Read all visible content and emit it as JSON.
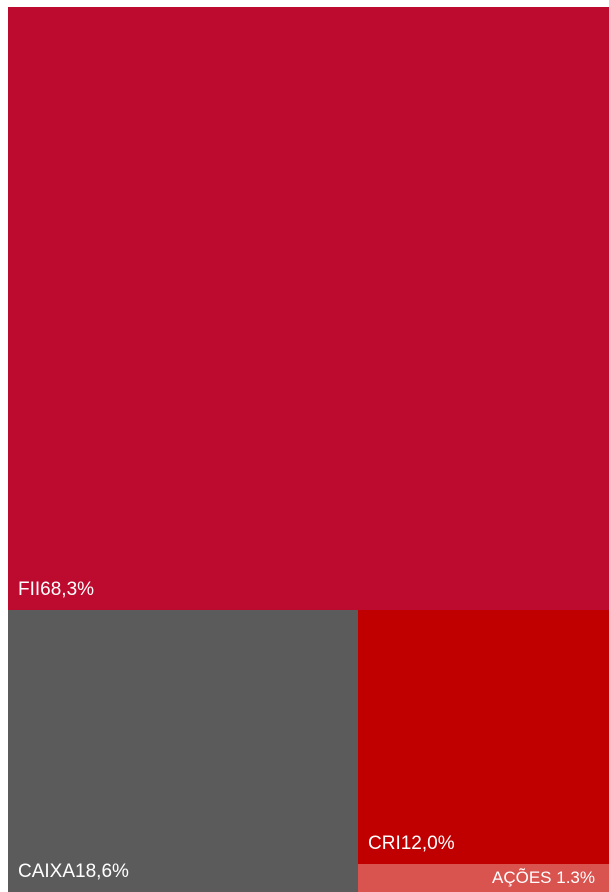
{
  "chart_data": {
    "type": "treemap",
    "title": "",
    "items": [
      {
        "name": "FII",
        "value_label": "68,3%",
        "separator": "",
        "value": 68.3,
        "color": "#BD0B2F"
      },
      {
        "name": "CAIXA",
        "value_label": "18,6%",
        "separator": "",
        "value": 18.6,
        "color": "#5B5B5B"
      },
      {
        "name": "CRI",
        "value_label": "12,0%",
        "separator": "",
        "value": 12.0,
        "color": "#C00000"
      },
      {
        "name": "AÇÕES",
        "value_label": "1.3%",
        "separator": " ",
        "value": 1.3,
        "color": "#D9534F"
      }
    ]
  }
}
